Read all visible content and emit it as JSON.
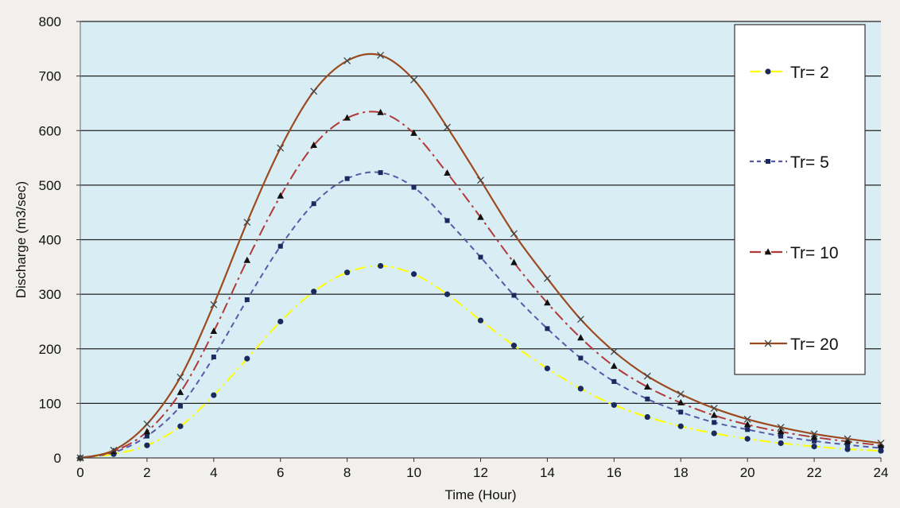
{
  "colors": {
    "plot_background": "#d9edf5",
    "figure_background": "#f1f0ec",
    "gridline": "#222222",
    "tr2": "#ffff00",
    "tr5": "#5a58a8",
    "tr10": "#b03a3a",
    "tr20": "#9c4a1e"
  },
  "chart_data": {
    "type": "line",
    "title": "",
    "xlabel": "Time (Hour)",
    "ylabel": "Discharge (m3/sec)",
    "xlim": [
      0,
      24
    ],
    "ylim": [
      0,
      800
    ],
    "xticks": [
      0,
      2,
      4,
      6,
      8,
      10,
      12,
      14,
      16,
      18,
      20,
      22,
      24
    ],
    "yticks": [
      0,
      100,
      200,
      300,
      400,
      500,
      600,
      700,
      800
    ],
    "grid": "horizontal",
    "legend_position": "right",
    "x": [
      0,
      1,
      2,
      3,
      4,
      5,
      6,
      7,
      8,
      9,
      10,
      11,
      12,
      13,
      14,
      15,
      16,
      17,
      18,
      19,
      20,
      21,
      22,
      23,
      24
    ],
    "series": [
      {
        "name": "Tr= 2",
        "color": "#ffff00",
        "dash": "14 5 3 5",
        "marker": "circle",
        "values": [
          0,
          7,
          23,
          58,
          115,
          182,
          250,
          305,
          340,
          352,
          337,
          300,
          252,
          206,
          164,
          127,
          97,
          75,
          58,
          45,
          35,
          27,
          21,
          16,
          13
        ]
      },
      {
        "name": "Tr= 5",
        "color": "#5a58a8",
        "dash": "7 5",
        "marker": "square",
        "values": [
          0,
          10,
          40,
          95,
          185,
          290,
          388,
          466,
          512,
          523,
          496,
          435,
          368,
          298,
          237,
          183,
          140,
          108,
          84,
          65,
          52,
          40,
          31,
          24,
          18
        ]
      },
      {
        "name": "Tr= 10",
        "color": "#b03a3a",
        "dash": "14 5 3 5",
        "marker": "triangle",
        "values": [
          0,
          12,
          48,
          120,
          232,
          362,
          480,
          573,
          623,
          633,
          595,
          522,
          441,
          358,
          284,
          220,
          168,
          130,
          101,
          78,
          61,
          48,
          38,
          30,
          23
        ]
      },
      {
        "name": "Tr= 20",
        "color": "#9c4a1e",
        "dash": "",
        "marker": "x",
        "values": [
          0,
          14,
          62,
          148,
          281,
          432,
          568,
          672,
          728,
          738,
          693,
          606,
          509,
          411,
          329,
          254,
          195,
          150,
          117,
          91,
          71,
          56,
          44,
          35,
          27
        ]
      }
    ]
  }
}
